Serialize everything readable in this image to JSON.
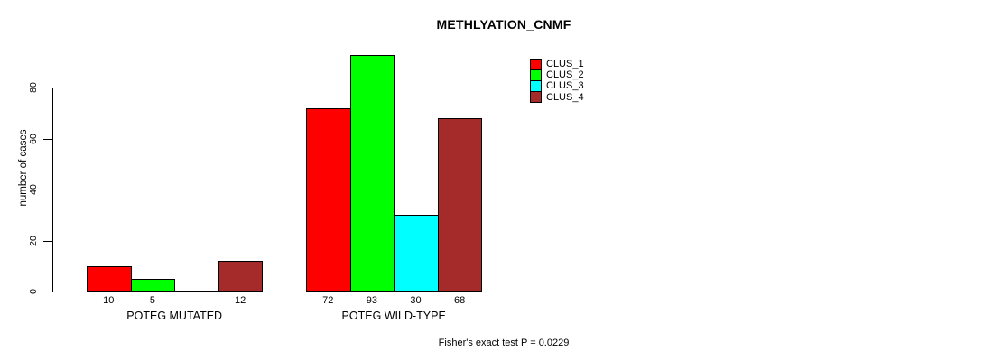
{
  "chart_data": {
    "type": "bar",
    "title": "METHLYATION_CNMF",
    "xlabel": "",
    "ylabel": "number of cases",
    "ylim": [
      0,
      80
    ],
    "yticks": [
      0,
      20,
      40,
      60,
      80
    ],
    "grid": false,
    "legend_position": "top-right",
    "series": [
      {
        "name": "CLUS_1",
        "color": "#ff0000"
      },
      {
        "name": "CLUS_2",
        "color": "#00ff00"
      },
      {
        "name": "CLUS_3",
        "color": "#00ffff"
      },
      {
        "name": "CLUS_4",
        "color": "#a52a2a"
      }
    ],
    "groups": [
      {
        "label": "POTEG MUTATED",
        "values": [
          10,
          5,
          0,
          12
        ],
        "bar_labels": [
          "10",
          "5",
          "",
          "12"
        ]
      },
      {
        "label": "POTEG WILD-TYPE",
        "values": [
          72,
          93,
          30,
          68
        ],
        "bar_labels": [
          "72",
          "93",
          "30",
          "68"
        ]
      }
    ],
    "annotation": "Fisher's exact test P = 0.0229"
  }
}
